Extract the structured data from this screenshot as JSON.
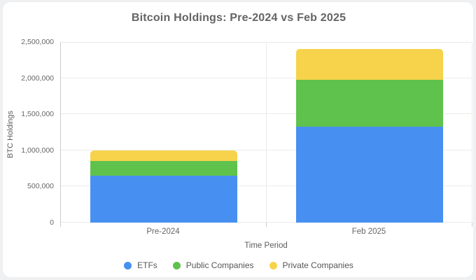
{
  "chart_data": {
    "type": "bar",
    "stacked": true,
    "title": "Bitcoin Holdings: Pre-2024 vs Feb 2025",
    "categories": [
      "Pre-2024",
      "Feb 2025"
    ],
    "series": [
      {
        "name": "ETFs",
        "color": "#4790F1",
        "values": [
          650000,
          1330000
        ]
      },
      {
        "name": "Public Companies",
        "color": "#5FC24D",
        "values": [
          200000,
          650000
        ]
      },
      {
        "name": "Private Companies",
        "color": "#F6D34B",
        "values": [
          150000,
          420000
        ]
      }
    ],
    "totals": [
      1000000,
      2400000
    ],
    "xlabel": "Time Period",
    "ylabel": "BTC Holdings",
    "ylim": [
      0,
      2500000
    ],
    "ytick_step": 500000,
    "ytick_labels": [
      "0",
      "500,000",
      "1,000,000",
      "1,500,000",
      "2,000,000",
      "2,500,000"
    ],
    "grid": true,
    "legend_position": "bottom"
  },
  "colors": {
    "page_background": "#eef0f2",
    "card_background": "#ffffff",
    "title_text": "#646464",
    "axis_text": "#666666",
    "gridline": "#ececec",
    "axis_line": "#cccccc"
  }
}
